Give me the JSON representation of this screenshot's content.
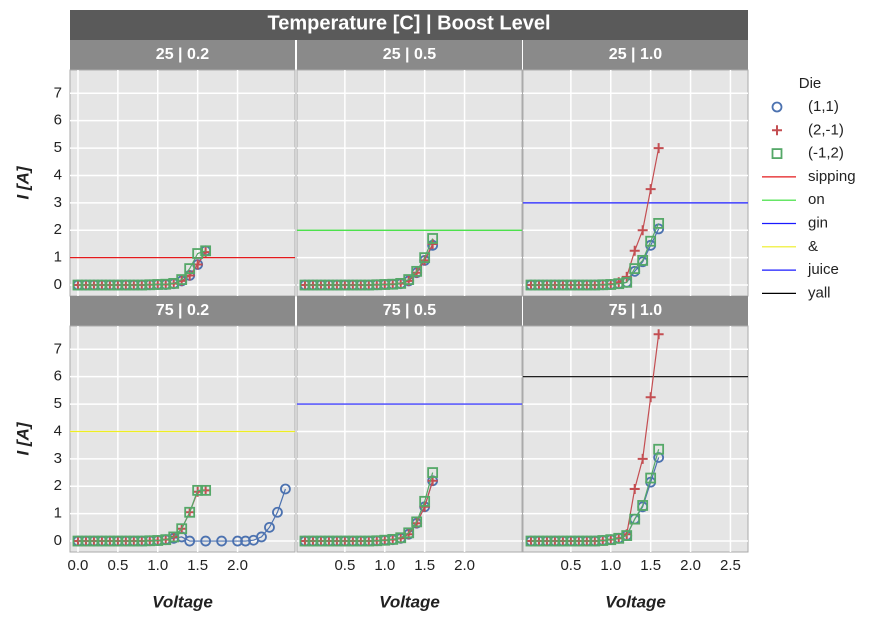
{
  "chart_data": {
    "type": "scatter",
    "title": "Temperature [C] | Boost Level",
    "legend_title": "Die",
    "x_label": "Voltage",
    "y_label": "I [A]",
    "xlim": [
      -0.1,
      2.72
    ],
    "ylim": [
      -0.4,
      7.85
    ],
    "yticks": [
      0,
      1,
      2,
      3,
      4,
      5,
      6,
      7
    ],
    "grid": true,
    "x": [
      0,
      0.1,
      0.2,
      0.3,
      0.4,
      0.5,
      0.6,
      0.7,
      0.8,
      0.9,
      1.0,
      1.1,
      1.2,
      1.3,
      1.4,
      1.5,
      1.6
    ],
    "panels": [
      {
        "title": "25 | 0.2",
        "xticks": [
          {
            "value": 0,
            "label": "0.0"
          },
          0.5,
          {
            "value": 1,
            "label": "1.0"
          },
          1.5,
          {
            "value": 2,
            "label": "2.0"
          }
        ],
        "hline": {
          "name": "sipping",
          "color": "#e41a1c",
          "value": 1
        },
        "series": [
          {
            "name": "(1,1)",
            "color": "#4c72b0",
            "marker": "circle",
            "values": [
              0,
              0,
              0,
              0,
              0,
              0,
              0,
              0,
              0,
              0.01,
              0.02,
              0.02,
              0.05,
              0.15,
              0.35,
              0.75,
              1.25
            ]
          },
          {
            "name": "(2,-1)",
            "color": "#c44e52",
            "marker": "plus",
            "values": [
              0,
              0,
              0,
              0,
              0,
              0,
              0,
              0,
              0,
              0.01,
              0.02,
              0.02,
              0.05,
              0.15,
              0.35,
              0.75,
              1.2
            ]
          },
          {
            "name": "(-1,2)",
            "color": "#55a868",
            "marker": "square",
            "values": [
              0,
              0,
              0,
              0,
              0,
              0,
              0,
              0,
              0,
              0.01,
              0.02,
              0.03,
              0.06,
              0.2,
              0.6,
              1.15,
              1.25
            ]
          }
        ]
      },
      {
        "title": "25 | 0.5",
        "xticks": [
          0.5,
          {
            "value": 1,
            "label": "1.0"
          },
          1.5,
          {
            "value": 2,
            "label": "2.0"
          }
        ],
        "hline": {
          "name": "on",
          "color": "#33dd33",
          "value": 2
        },
        "series": [
          {
            "name": "(1,1)",
            "color": "#4c72b0",
            "marker": "circle",
            "values": [
              0,
              0,
              0,
              0,
              0,
              0,
              0,
              0,
              0,
              0.01,
              0.02,
              0.03,
              0.05,
              0.15,
              0.45,
              0.9,
              1.45
            ]
          },
          {
            "name": "(2,-1)",
            "color": "#c44e52",
            "marker": "plus",
            "values": [
              0,
              0,
              0,
              0,
              0,
              0,
              0,
              0,
              0,
              0.01,
              0.02,
              0.03,
              0.05,
              0.15,
              0.45,
              0.9,
              1.5
            ]
          },
          {
            "name": "(-1,2)",
            "color": "#55a868",
            "marker": "square",
            "values": [
              0,
              0,
              0,
              0,
              0,
              0,
              0,
              0,
              0,
              0.01,
              0.02,
              0.03,
              0.06,
              0.2,
              0.5,
              1.0,
              1.7
            ]
          }
        ]
      },
      {
        "title": "25 | 1.0",
        "xticks": [
          0.5,
          {
            "value": 1,
            "label": "1.0"
          },
          1.5,
          {
            "value": 2,
            "label": "2.0"
          },
          2.5
        ],
        "hline": {
          "name": "gin",
          "color": "#1a1aff",
          "value": 3
        },
        "series": [
          {
            "name": "(1,1)",
            "color": "#4c72b0",
            "marker": "circle",
            "values": [
              0,
              0,
              0,
              0,
              0,
              0,
              0,
              0,
              0,
              0.01,
              0.02,
              0.05,
              0.1,
              0.5,
              0.85,
              1.45,
              2.05
            ]
          },
          {
            "name": "(2,-1)",
            "color": "#c44e52",
            "marker": "plus",
            "values": [
              0,
              0,
              0,
              0,
              0,
              0,
              0,
              0,
              0,
              0.01,
              0.03,
              0.1,
              0.3,
              1.25,
              2.0,
              3.5,
              5.0
            ]
          },
          {
            "name": "(-1,2)",
            "color": "#55a868",
            "marker": "square",
            "values": [
              0,
              0,
              0,
              0,
              0,
              0,
              0,
              0,
              0,
              0.01,
              0.02,
              0.05,
              0.1,
              0.6,
              0.9,
              1.6,
              2.25
            ]
          }
        ]
      },
      {
        "title": "75 | 0.2",
        "xticks": [
          {
            "value": 0,
            "label": "0.0"
          },
          0.5,
          {
            "value": 1,
            "label": "1.0"
          },
          1.5,
          {
            "value": 2,
            "label": "2.0"
          }
        ],
        "hline": {
          "name": "&",
          "color": "#eeee22",
          "value": 4
        },
        "series": [
          {
            "name": "(1,1)",
            "color": "#4c72b0",
            "marker": "circle",
            "x": [
              0,
              0.1,
              0.2,
              0.3,
              0.4,
              0.5,
              0.6,
              0.7,
              0.8,
              0.9,
              1.0,
              1.1,
              1.2,
              1.3,
              1.4,
              1.6,
              1.8,
              2.0,
              2.1,
              2.2,
              2.3,
              2.4,
              2.5,
              2.6
            ],
            "values": [
              0,
              0,
              0,
              0,
              0,
              0,
              0,
              0,
              0,
              0.01,
              0.02,
              0.05,
              0.1,
              0.15,
              0,
              0,
              0,
              0,
              0,
              0.03,
              0.15,
              0.5,
              1.05,
              1.9
            ]
          },
          {
            "name": "(2,-1)",
            "color": "#c44e52",
            "marker": "plus",
            "values": [
              0,
              0,
              0,
              0,
              0,
              0,
              0,
              0,
              0,
              0.01,
              0.02,
              0.05,
              0.15,
              0.45,
              1.05,
              1.8,
              1.85
            ]
          },
          {
            "name": "(-1,2)",
            "color": "#55a868",
            "marker": "square",
            "values": [
              0,
              0,
              0,
              0,
              0,
              0,
              0,
              0,
              0,
              0.01,
              0.02,
              0.05,
              0.15,
              0.45,
              1.05,
              1.85,
              1.85
            ]
          }
        ]
      },
      {
        "title": "75 | 0.5",
        "xticks": [
          0.5,
          {
            "value": 1,
            "label": "1.0"
          },
          1.5,
          {
            "value": 2,
            "label": "2.0"
          }
        ],
        "hline": {
          "name": "juice",
          "color": "#1a1aff",
          "value": 5
        },
        "series": [
          {
            "name": "(1,1)",
            "color": "#4c72b0",
            "marker": "circle",
            "values": [
              0,
              0,
              0,
              0,
              0,
              0,
              0,
              0,
              0,
              0.01,
              0.03,
              0.05,
              0.1,
              0.25,
              0.65,
              1.25,
              2.2
            ]
          },
          {
            "name": "(2,-1)",
            "color": "#c44e52",
            "marker": "plus",
            "values": [
              0,
              0,
              0,
              0,
              0,
              0,
              0,
              0,
              0,
              0.01,
              0.03,
              0.05,
              0.1,
              0.25,
              0.65,
              1.25,
              2.2
            ]
          },
          {
            "name": "(-1,2)",
            "color": "#55a868",
            "marker": "square",
            "values": [
              0,
              0,
              0,
              0,
              0,
              0,
              0,
              0,
              0,
              0.01,
              0.03,
              0.06,
              0.12,
              0.3,
              0.7,
              1.45,
              2.5
            ]
          }
        ]
      },
      {
        "title": "75 | 1.0",
        "xticks": [
          0.5,
          {
            "value": 1,
            "label": "1.0"
          },
          1.5,
          {
            "value": 2,
            "label": "2.0"
          },
          2.5
        ],
        "hline": {
          "name": "yall",
          "color": "#000000",
          "value": 6
        },
        "series": [
          {
            "name": "(1,1)",
            "color": "#4c72b0",
            "marker": "circle",
            "values": [
              0,
              0,
              0,
              0,
              0,
              0,
              0,
              0,
              0,
              0.02,
              0.05,
              0.1,
              0.2,
              0.8,
              1.25,
              2.15,
              3.05
            ]
          },
          {
            "name": "(2,-1)",
            "color": "#c44e52",
            "marker": "plus",
            "values": [
              0,
              0,
              0,
              0,
              0,
              0,
              0,
              0,
              0,
              0.02,
              0.05,
              0.1,
              0.25,
              1.9,
              3.0,
              5.25,
              7.55
            ]
          },
          {
            "name": "(-1,2)",
            "color": "#55a868",
            "marker": "square",
            "values": [
              0,
              0,
              0,
              0,
              0,
              0,
              0,
              0,
              0,
              0.02,
              0.05,
              0.1,
              0.2,
              0.8,
              1.3,
              2.3,
              3.35
            ]
          }
        ]
      }
    ]
  }
}
